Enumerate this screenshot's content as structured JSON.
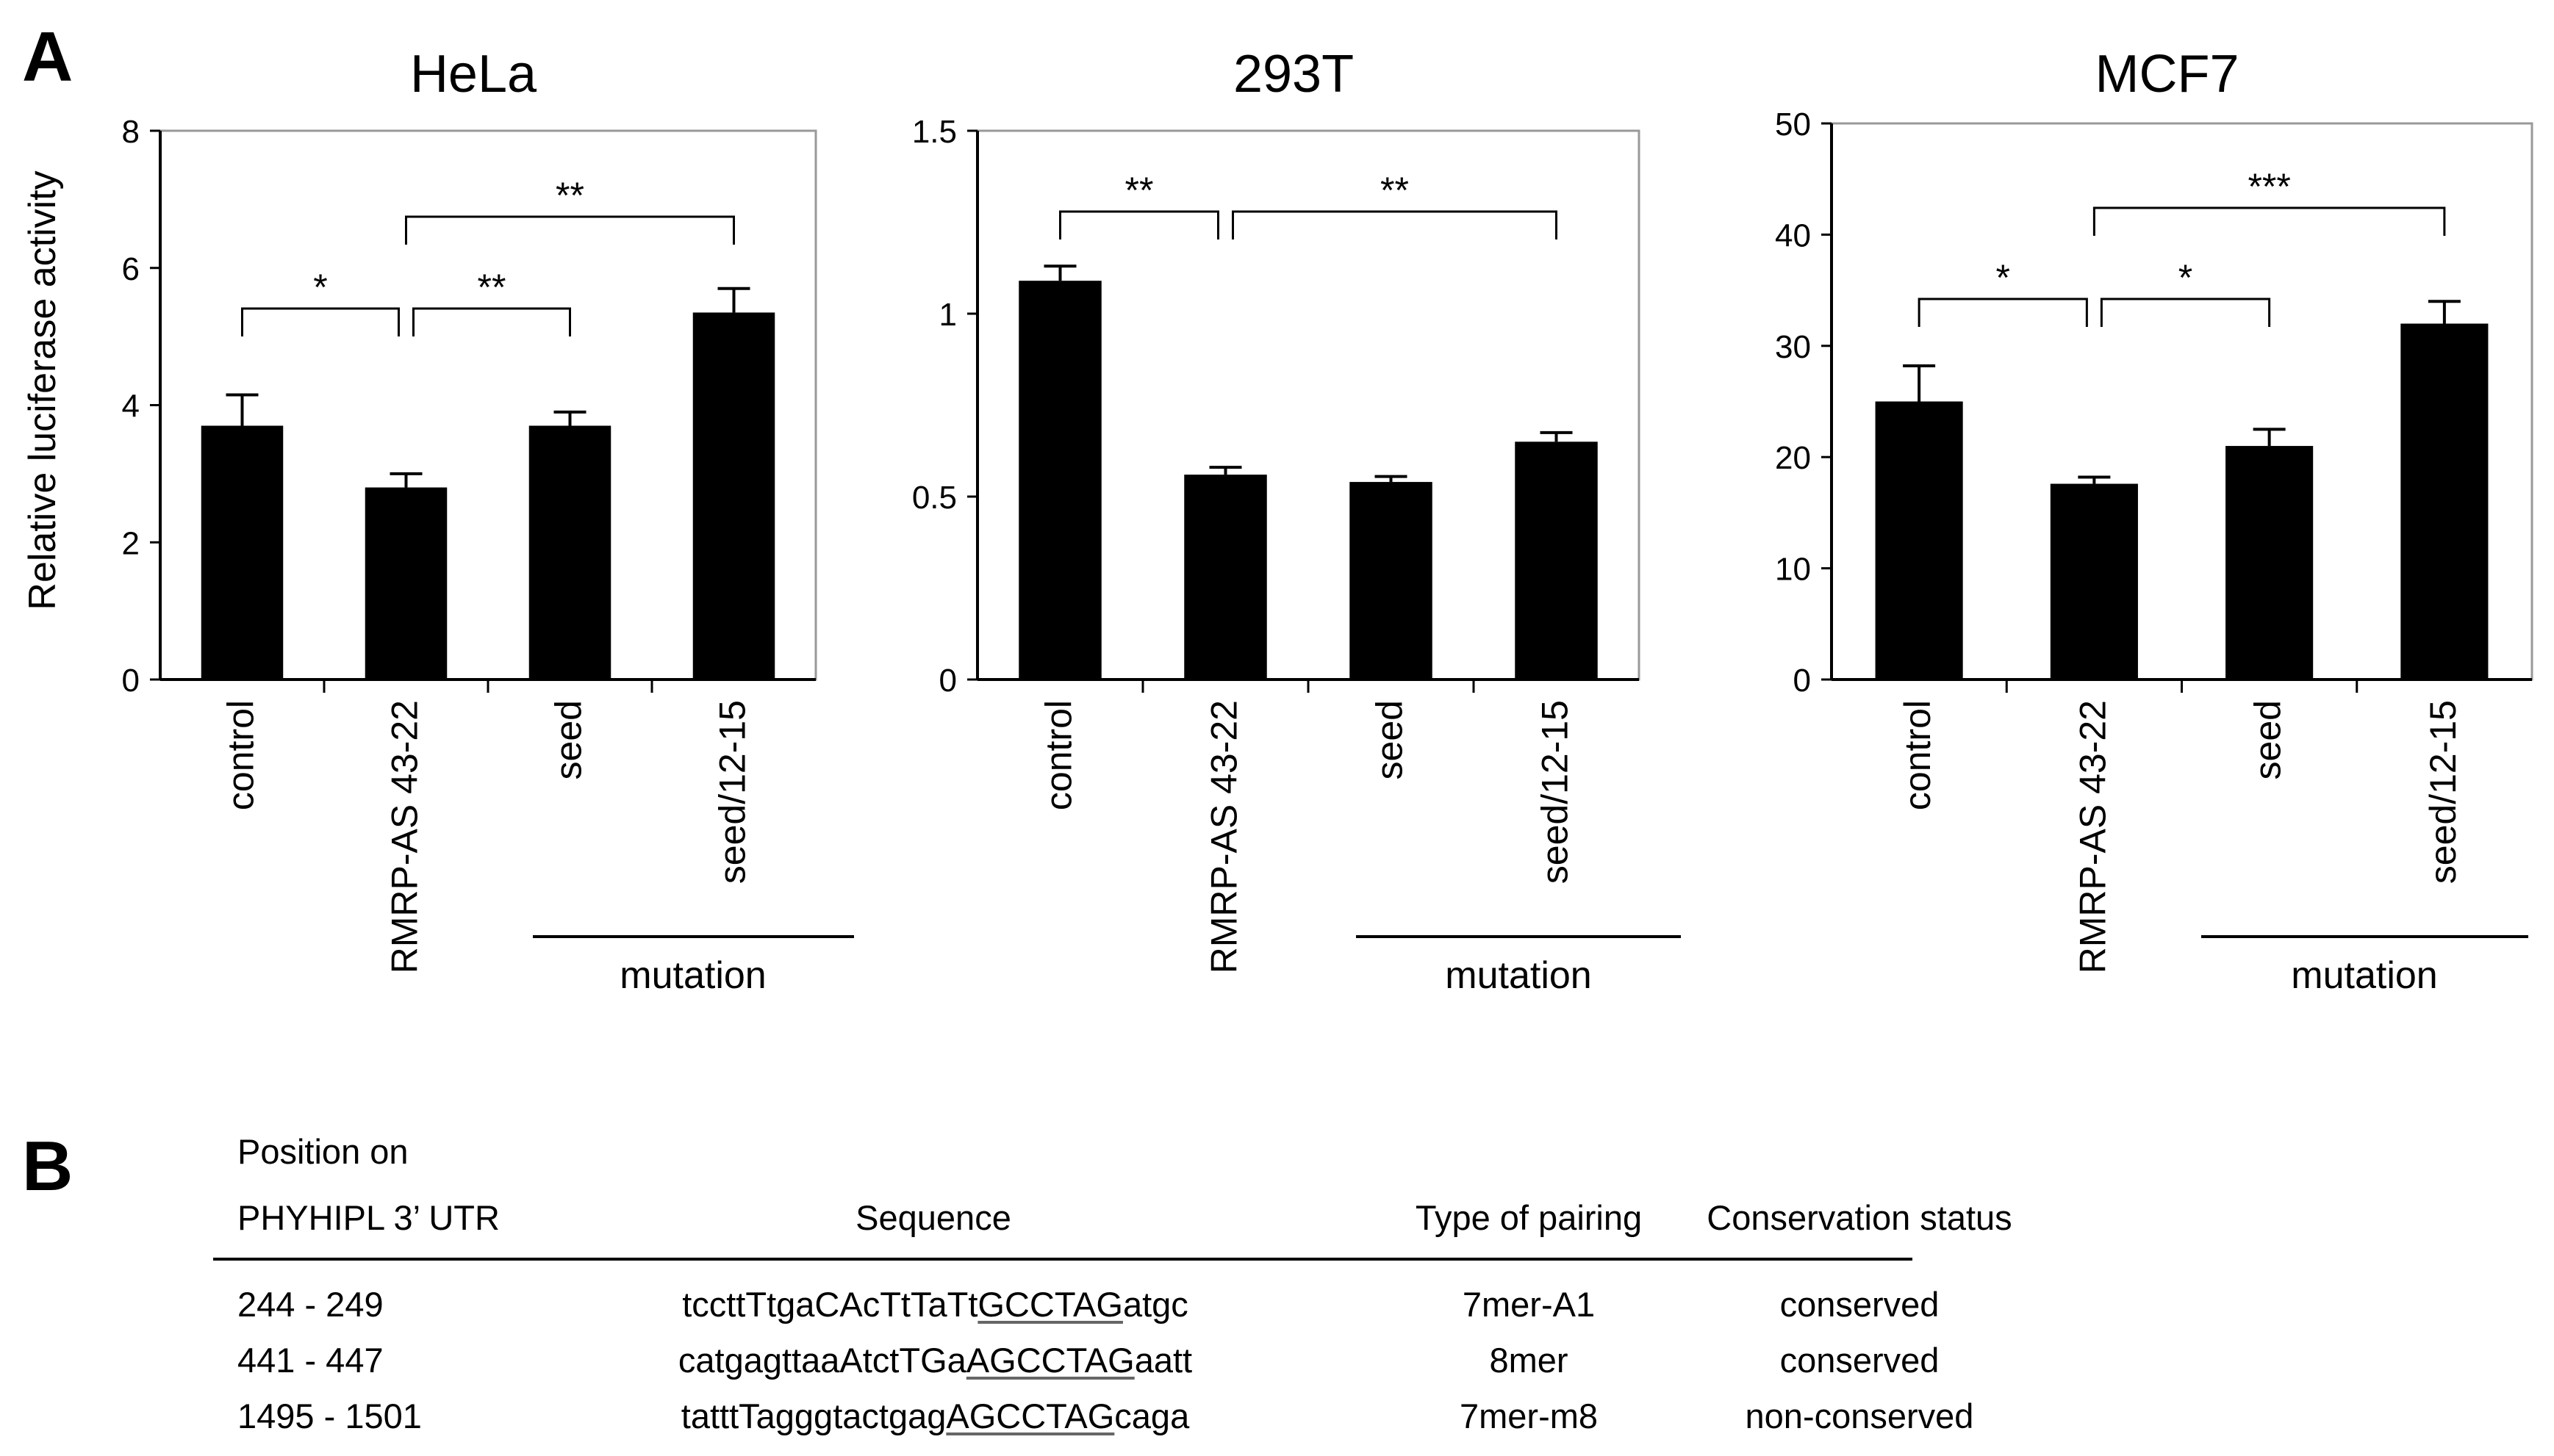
{
  "panel_a_label": "A",
  "panel_b_label": "B",
  "chart_data": [
    {
      "type": "bar",
      "title": "HeLa",
      "ylabel": "Relative luciferase activity",
      "xlabel": "",
      "categories": [
        "control",
        "RMRP-AS 43-22",
        "seed",
        "seed/12-15"
      ],
      "values": [
        3.7,
        2.8,
        3.7,
        5.35
      ],
      "errors": [
        0.45,
        0.2,
        0.2,
        0.35
      ],
      "ylim": [
        0,
        8
      ],
      "yticks": [
        "0",
        "2",
        "4",
        "6",
        "8"
      ],
      "ytick_values": [
        0,
        2,
        4,
        6,
        8
      ],
      "group_label": "mutation",
      "significance": [
        {
          "from": 0,
          "to": 1,
          "label": "*"
        },
        {
          "from": 1,
          "to": 2,
          "label": "**"
        },
        {
          "from": 1,
          "to": 3,
          "label": "**"
        }
      ]
    },
    {
      "type": "bar",
      "title": "293T",
      "ylabel": "",
      "xlabel": "",
      "categories": [
        "control",
        "RMRP-AS 43-22",
        "seed",
        "seed/12-15"
      ],
      "values": [
        1.09,
        0.56,
        0.54,
        0.65
      ],
      "errors": [
        0.04,
        0.02,
        0.015,
        0.025
      ],
      "ylim": [
        0,
        1.5
      ],
      "yticks": [
        "0",
        "0.5",
        "1",
        "1.5"
      ],
      "ytick_values": [
        0,
        0.5,
        1,
        1.5
      ],
      "group_label": "mutation",
      "significance": [
        {
          "from": 0,
          "to": 1,
          "label": "**"
        },
        {
          "from": 1,
          "to": 3,
          "label": "**"
        }
      ]
    },
    {
      "type": "bar",
      "title": "MCF7",
      "ylabel": "",
      "xlabel": "",
      "categories": [
        "control",
        "RMRP-AS 43-22",
        "seed",
        "seed/12-15"
      ],
      "values": [
        25,
        17.6,
        21,
        32
      ],
      "errors": [
        3.2,
        0.6,
        1.5,
        2.0
      ],
      "ylim": [
        0,
        50
      ],
      "yticks": [
        "0",
        "10",
        "20",
        "30",
        "40",
        "50"
      ],
      "ytick_values": [
        0,
        10,
        20,
        30,
        40,
        50
      ],
      "group_label": "mutation",
      "significance": [
        {
          "from": 0,
          "to": 1,
          "label": "*"
        },
        {
          "from": 1,
          "to": 2,
          "label": "*"
        },
        {
          "from": 1,
          "to": 3,
          "label": "***"
        }
      ]
    }
  ],
  "table": {
    "header_line1": "Position on",
    "header_position": "PHYHIPL 3’ UTR",
    "header_sequence": "Sequence",
    "header_pairing": "Type of pairing",
    "header_conservation": "Conservation status",
    "rows": [
      {
        "position": "244 - 249",
        "seq_pre": "tccttTtgaCAcTtTaTt",
        "seq_site": "GCCTAG",
        "seq_post": "atgc",
        "pairing": "7mer-A1",
        "conservation": "conserved"
      },
      {
        "position": "441 - 447",
        "seq_pre": "catgagttaaAtctTGa",
        "seq_site": "AGCCTAG",
        "seq_post": "aatt",
        "pairing": "8mer",
        "conservation": "conserved"
      },
      {
        "position": "1495 - 1501",
        "seq_pre": "tatttTagggtactgag",
        "seq_site": "AGCCTAG",
        "seq_post": "caga",
        "pairing": "7mer-m8",
        "conservation": "non-conserved"
      }
    ]
  }
}
